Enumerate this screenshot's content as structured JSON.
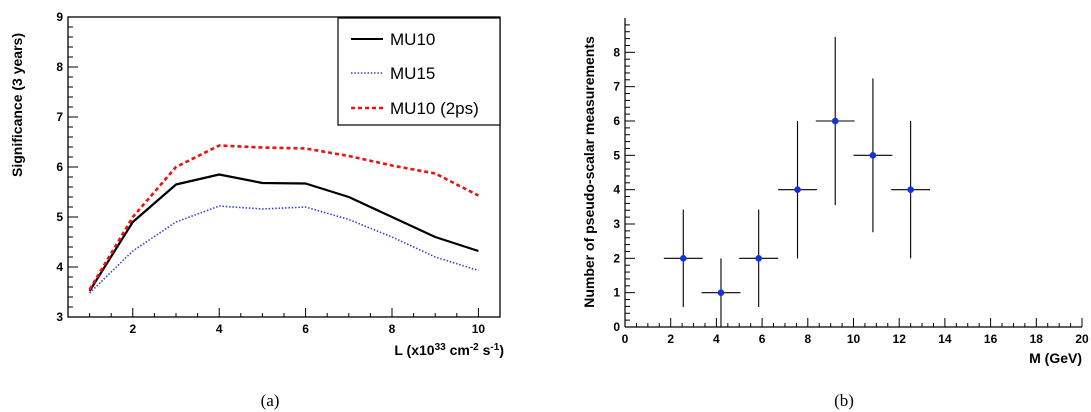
{
  "chart_data": [
    {
      "type": "line",
      "xlabel": "L (x10^33 cm^-2 s^-1)",
      "ylabel": "Significance (3 years)",
      "xlim": [
        0.5,
        10.5
      ],
      "ylim": [
        3,
        9
      ],
      "x_ticks": [
        2,
        4,
        6,
        8,
        10
      ],
      "y_ticks": [
        3,
        4,
        5,
        6,
        7,
        8,
        9
      ],
      "grid": false,
      "legend_position": "top-right",
      "x": [
        1,
        2,
        3,
        4,
        5,
        6,
        7,
        8,
        9,
        10
      ],
      "series": [
        {
          "name": "MU10",
          "color": "#000000",
          "style": "solid",
          "values": [
            3.52,
            4.9,
            5.65,
            5.85,
            5.68,
            5.67,
            5.4,
            5.0,
            4.6,
            4.32
          ]
        },
        {
          "name": "MU15",
          "color": "#3344cc",
          "style": "dotted",
          "values": [
            3.48,
            4.32,
            4.9,
            5.22,
            5.16,
            5.2,
            4.95,
            4.6,
            4.2,
            3.93
          ]
        },
        {
          "name": "MU10 (2ps)",
          "color": "#ee1111",
          "style": "dashed",
          "values": [
            3.55,
            5.0,
            6.0,
            6.43,
            6.39,
            6.37,
            6.22,
            6.03,
            5.87,
            5.43
          ]
        }
      ],
      "caption": "(a)"
    },
    {
      "type": "scatter",
      "xlabel": "M (GeV)",
      "ylabel": "Number of pseudo-scalar measurements",
      "xlim": [
        0,
        20
      ],
      "ylim": [
        0,
        9
      ],
      "x_ticks": [
        0,
        2,
        4,
        6,
        8,
        10,
        12,
        14,
        16,
        18,
        20
      ],
      "y_ticks": [
        0,
        1,
        2,
        3,
        4,
        5,
        6,
        7,
        8
      ],
      "grid": false,
      "marker_color": "#1133dd",
      "points": [
        {
          "x": 2.55,
          "y": 2,
          "xerr": 0.85,
          "yerr_low": 1.42,
          "yerr_high": 1.42
        },
        {
          "x": 4.2,
          "y": 1,
          "xerr": 0.85,
          "yerr_low": 1.0,
          "yerr_high": 1.0
        },
        {
          "x": 5.85,
          "y": 2,
          "xerr": 0.85,
          "yerr_low": 1.42,
          "yerr_high": 1.42
        },
        {
          "x": 7.55,
          "y": 4,
          "xerr": 0.85,
          "yerr_low": 2.0,
          "yerr_high": 2.0
        },
        {
          "x": 9.2,
          "y": 6,
          "xerr": 0.85,
          "yerr_low": 2.45,
          "yerr_high": 2.45
        },
        {
          "x": 10.85,
          "y": 5,
          "xerr": 0.85,
          "yerr_low": 2.24,
          "yerr_high": 2.24
        },
        {
          "x": 12.5,
          "y": 4,
          "xerr": 0.85,
          "yerr_low": 2.0,
          "yerr_high": 2.0
        }
      ],
      "caption": "(b)"
    }
  ]
}
